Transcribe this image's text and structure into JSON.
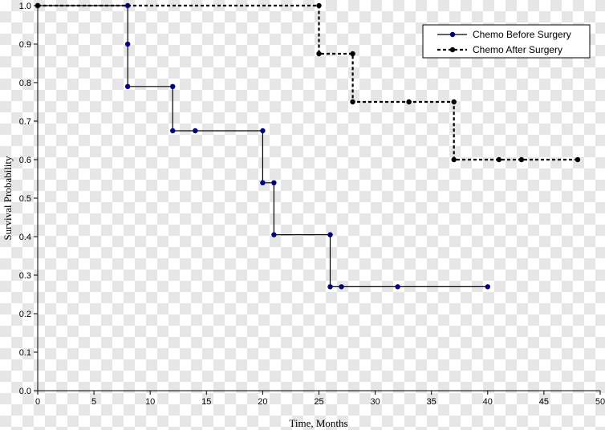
{
  "chart_data": {
    "type": "line",
    "title": "",
    "xlabel": "Time, Months",
    "ylabel": "Survival Probability",
    "xlim": [
      0,
      50
    ],
    "ylim": [
      0,
      1
    ],
    "x_ticks": [
      "0",
      "5",
      "10",
      "15",
      "20",
      "25",
      "30",
      "35",
      "40",
      "45",
      "50"
    ],
    "y_ticks": [
      "0.0",
      "0.1",
      "0.2",
      "0.3",
      "0.4",
      "0.5",
      "0.6",
      "0.7",
      "0.8",
      "0.9",
      "1.0"
    ],
    "grid": false,
    "legend_position": "top-right",
    "step": true,
    "series": [
      {
        "name": "Chemo Before Surgery",
        "color": "#000080",
        "line_color": "#000000",
        "line_style": "solid",
        "points": [
          [
            0,
            1.0
          ],
          [
            8,
            1.0
          ],
          [
            8,
            0.9
          ],
          [
            8,
            0.79
          ],
          [
            12,
            0.79
          ],
          [
            12,
            0.675
          ],
          [
            14,
            0.675
          ],
          [
            20,
            0.675
          ],
          [
            20,
            0.54
          ],
          [
            21,
            0.54
          ],
          [
            21,
            0.405
          ],
          [
            26,
            0.405
          ],
          [
            26,
            0.27
          ],
          [
            27,
            0.27
          ],
          [
            32,
            0.27
          ],
          [
            40,
            0.27
          ]
        ]
      },
      {
        "name": "Chemo After Surgery",
        "color": "#000000",
        "line_color": "#000000",
        "line_style": "dotted",
        "points": [
          [
            0,
            1.0
          ],
          [
            25,
            1.0
          ],
          [
            25,
            0.875
          ],
          [
            28,
            0.875
          ],
          [
            28,
            0.75
          ],
          [
            33,
            0.75
          ],
          [
            37,
            0.75
          ],
          [
            37,
            0.6
          ],
          [
            41,
            0.6
          ],
          [
            43,
            0.6
          ],
          [
            48,
            0.6
          ]
        ]
      }
    ]
  }
}
